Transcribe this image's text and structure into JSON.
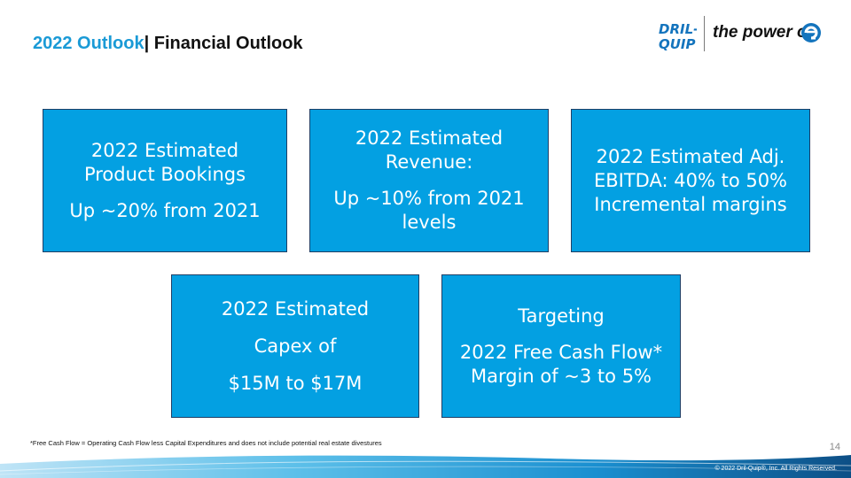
{
  "header": {
    "title_accent": "2022 Outlook",
    "title_rest": "| Financial Outlook"
  },
  "logo": {
    "brand_lines": [
      "DRIL-",
      "QUIP"
    ],
    "tagline": "the power of"
  },
  "boxes": [
    {
      "lines": [
        "2022 Estimated Product Bookings",
        "Up ~20% from 2021"
      ]
    },
    {
      "lines": [
        "2022 Estimated Revenue:",
        "Up ~10% from 2021 levels"
      ]
    },
    {
      "lines": [
        "2022 Estimated Adj. EBITDA: 40% to 50% Incremental margins"
      ]
    },
    {
      "lines": [
        "2022 Estimated",
        "Capex of",
        "$15M to $17M"
      ]
    },
    {
      "lines": [
        "Targeting",
        "2022 Free Cash Flow* Margin of ~3 to 5%"
      ]
    }
  ],
  "footnote": "*Free Cash Flow = Operating Cash Flow less Capital Expenditures and does not include potential real estate divestures",
  "page_number": "14",
  "copyright": "© 2022 Dril-Quip®, Inc. All Rights Reserved.",
  "colors": {
    "accent": "#1a9ad6",
    "box_fill": "#03a0e2",
    "box_border": "#1f3f66",
    "logo_blue": "#1474bd",
    "footer_dark": "#0d4f86"
  }
}
